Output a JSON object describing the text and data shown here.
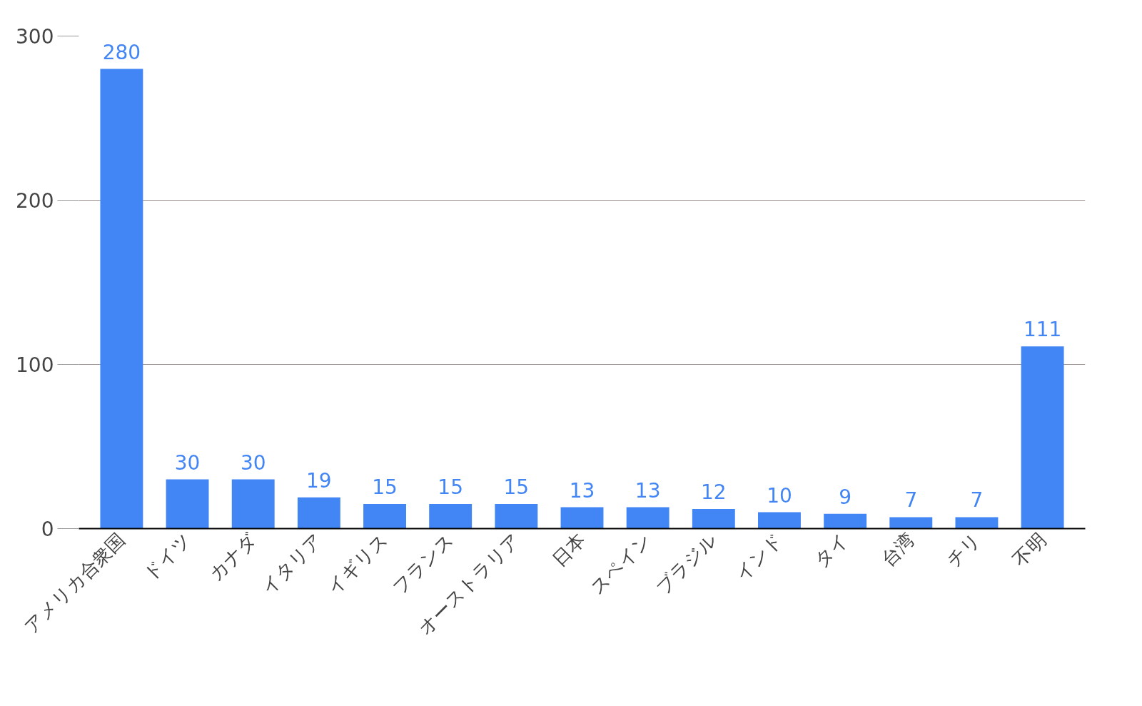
{
  "chart_data": {
    "type": "bar",
    "categories": [
      "アメリカ合衆国",
      "ドイツ",
      "カナダ",
      "イタリア",
      "イギリス",
      "フランス",
      "オーストラリア",
      "日本",
      "スペイン",
      "ブラジル",
      "インド",
      "タイ",
      "台湾",
      "チリ",
      "不明"
    ],
    "values": [
      280,
      30,
      30,
      19,
      15,
      15,
      15,
      13,
      13,
      12,
      10,
      9,
      7,
      7,
      111
    ],
    "color": "#4285f4",
    "ylim": [
      0,
      300
    ],
    "yticks": [
      0,
      100,
      200,
      300
    ],
    "grid": "y",
    "data_labels": true
  }
}
